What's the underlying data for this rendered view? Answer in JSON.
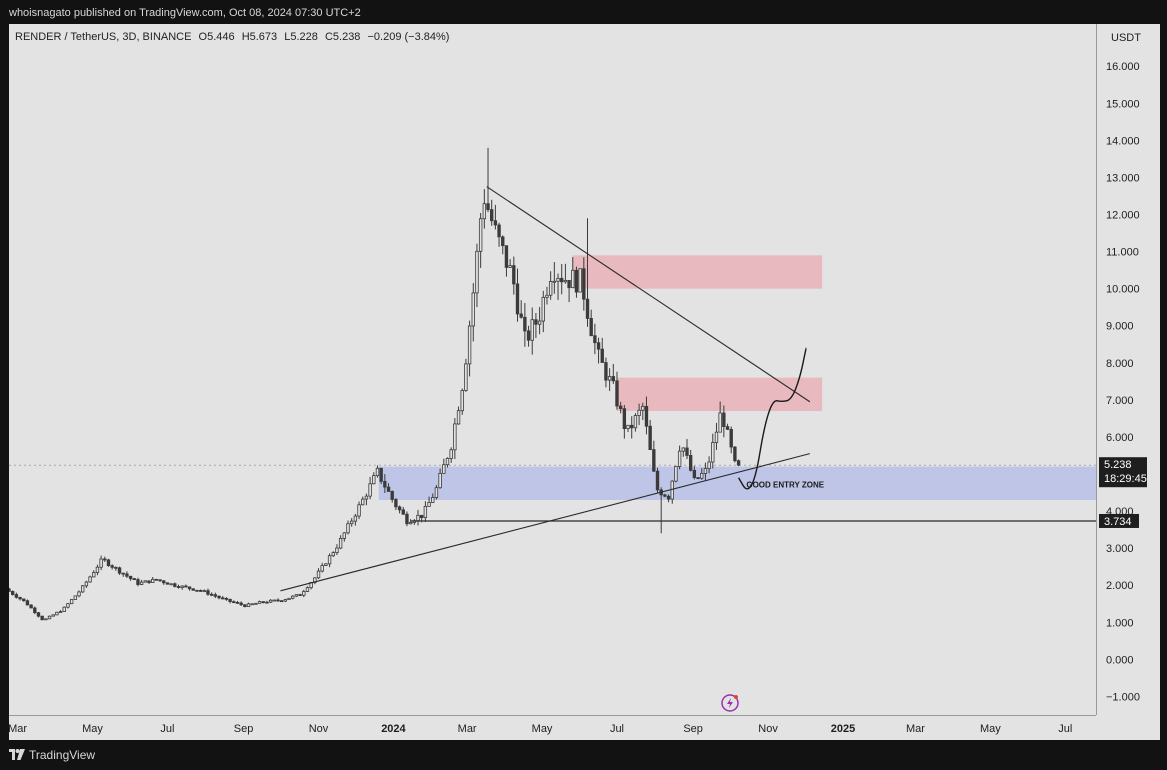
{
  "header": {
    "publish_line": "whoisnagato published on TradingView.com, Oct 08, 2024 07:30 UTC+2"
  },
  "legend": {
    "symbol": "RENDER / TetherUS, 3D, BINANCE",
    "open": "O5.446",
    "high": "H5.673",
    "low": "L5.228",
    "close": "C5.238",
    "change": "−0.209 (−3.84%)"
  },
  "footer": {
    "brand": "TradingView"
  },
  "colors": {
    "candle": "#3b3b3b",
    "background": "#e3e3e3",
    "resistance_zone": "#e9b2b7",
    "entry_zone": "#b7bfe7",
    "axis_text": "#1e1e1e"
  },
  "chart_data": {
    "type": "candlestick",
    "title": "RENDER / TetherUS, 3D, BINANCE",
    "y_axis_label": "USDT",
    "y_ticks": [
      -1,
      0,
      1,
      2,
      3,
      4,
      5,
      6,
      7,
      8,
      9,
      10,
      11,
      12,
      13,
      14,
      15,
      16
    ],
    "y_tick_labels": [
      "−1.000",
      "0.000",
      "1.000",
      "2.000",
      "3.000",
      "4.000",
      "5.000",
      "6.000",
      "7.000",
      "8.000",
      "9.000",
      "10.000",
      "11.000",
      "12.000",
      "13.000",
      "14.000",
      "15.000",
      "16.000"
    ],
    "ylim": [
      -1.5,
      16.6
    ],
    "xlim": [
      "2023-02-22",
      "2025-07-26"
    ],
    "x_ticks": [
      {
        "date": "2023-03-01",
        "label": "Mar",
        "bold": false
      },
      {
        "date": "2023-05-01",
        "label": "May",
        "bold": false
      },
      {
        "date": "2023-07-01",
        "label": "Jul",
        "bold": false
      },
      {
        "date": "2023-09-01",
        "label": "Sep",
        "bold": false
      },
      {
        "date": "2023-11-01",
        "label": "Nov",
        "bold": false
      },
      {
        "date": "2024-01-01",
        "label": "2024",
        "bold": true
      },
      {
        "date": "2024-03-01",
        "label": "Mar",
        "bold": false
      },
      {
        "date": "2024-05-01",
        "label": "May",
        "bold": false
      },
      {
        "date": "2024-07-01",
        "label": "Jul",
        "bold": false
      },
      {
        "date": "2024-09-01",
        "label": "Sep",
        "bold": false
      },
      {
        "date": "2024-11-01",
        "label": "Nov",
        "bold": false
      },
      {
        "date": "2025-01-01",
        "label": "2025",
        "bold": true
      },
      {
        "date": "2025-03-01",
        "label": "Mar",
        "bold": false
      },
      {
        "date": "2025-05-01",
        "label": "May",
        "bold": false
      },
      {
        "date": "2025-07-01",
        "label": "Jul",
        "bold": false
      }
    ],
    "price_key_points": [
      [
        "2023-02-22",
        1.9
      ],
      [
        "2023-03-10",
        1.55
      ],
      [
        "2023-03-25",
        1.05
      ],
      [
        "2023-04-10",
        1.35
      ],
      [
        "2023-04-25",
        1.9
      ],
      [
        "2023-05-12",
        2.7
      ],
      [
        "2023-05-25",
        2.4
      ],
      [
        "2023-06-10",
        2.05
      ],
      [
        "2023-06-25",
        2.15
      ],
      [
        "2023-07-10",
        2.0
      ],
      [
        "2023-08-01",
        1.85
      ],
      [
        "2023-08-20",
        1.6
      ],
      [
        "2023-09-05",
        1.45
      ],
      [
        "2023-09-20",
        1.55
      ],
      [
        "2023-10-05",
        1.6
      ],
      [
        "2023-10-20",
        1.75
      ],
      [
        "2023-11-01",
        2.2
      ],
      [
        "2023-11-20",
        3.1
      ],
      [
        "2023-12-10",
        4.3
      ],
      [
        "2023-12-22",
        5.05
      ],
      [
        "2024-01-05",
        4.2
      ],
      [
        "2024-01-15",
        3.75
      ],
      [
        "2024-01-28",
        3.9
      ],
      [
        "2024-02-08",
        4.6
      ],
      [
        "2024-02-20",
        5.8
      ],
      [
        "2024-03-01",
        7.6
      ],
      [
        "2024-03-10",
        10.2
      ],
      [
        "2024-03-17",
        12.6
      ],
      [
        "2024-03-28",
        11.4
      ],
      [
        "2024-04-10",
        10.3
      ],
      [
        "2024-04-20",
        8.6
      ],
      [
        "2024-05-01",
        9.2
      ],
      [
        "2024-05-12",
        10.6
      ],
      [
        "2024-05-22",
        10.3
      ],
      [
        "2024-06-05",
        10.2
      ],
      [
        "2024-06-18",
        8.2
      ],
      [
        "2024-07-01",
        7.3
      ],
      [
        "2024-07-12",
        6.1
      ],
      [
        "2024-07-25",
        6.8
      ],
      [
        "2024-08-05",
        4.6
      ],
      [
        "2024-08-15",
        4.4
      ],
      [
        "2024-08-25",
        5.9
      ],
      [
        "2024-09-05",
        4.8
      ],
      [
        "2024-09-15",
        5.1
      ],
      [
        "2024-09-27",
        6.7
      ],
      [
        "2024-10-08",
        5.24
      ]
    ],
    "spikes": [
      {
        "date": "2024-03-19",
        "high": 13.8
      },
      {
        "date": "2024-06-07",
        "high": 11.9
      },
      {
        "date": "2024-08-05",
        "low": 3.4
      }
    ],
    "last_price": {
      "value": 5.238,
      "label": "5.238",
      "countdown": "18:29:45"
    },
    "horizontal_line": {
      "value": 3.734,
      "label": "3.734",
      "start": "2024-01-15"
    },
    "zones": [
      {
        "name": "resistance-zone-upper",
        "start": "2024-05-26",
        "end": "2024-12-15",
        "low": 10.0,
        "high": 10.9
      },
      {
        "name": "resistance-zone-lower",
        "start": "2024-07-01",
        "end": "2024-12-15",
        "low": 6.7,
        "high": 7.6
      },
      {
        "name": "good-entry-zone",
        "start": "2023-12-20",
        "end": "2025-07-26",
        "low": 4.3,
        "high": 5.2,
        "label": "GOOD ENTRY ZONE"
      }
    ],
    "trendlines": [
      {
        "name": "descending-trendline",
        "from": [
          "2024-03-17",
          12.75
        ],
        "to": [
          "2024-12-05",
          6.95
        ]
      },
      {
        "name": "ascending-trendline",
        "from": [
          "2023-10-01",
          1.85
        ],
        "to": [
          "2024-12-05",
          5.55
        ]
      }
    ],
    "projection_path": [
      [
        "2024-10-08",
        4.9
      ],
      [
        "2024-10-15",
        4.5
      ],
      [
        "2024-10-22",
        4.9
      ],
      [
        "2024-10-29",
        6.3
      ],
      [
        "2024-11-05",
        7.0
      ],
      [
        "2024-11-12",
        6.95
      ],
      [
        "2024-11-20",
        7.0
      ],
      [
        "2024-11-27",
        7.6
      ],
      [
        "2024-12-02",
        8.4
      ]
    ]
  }
}
